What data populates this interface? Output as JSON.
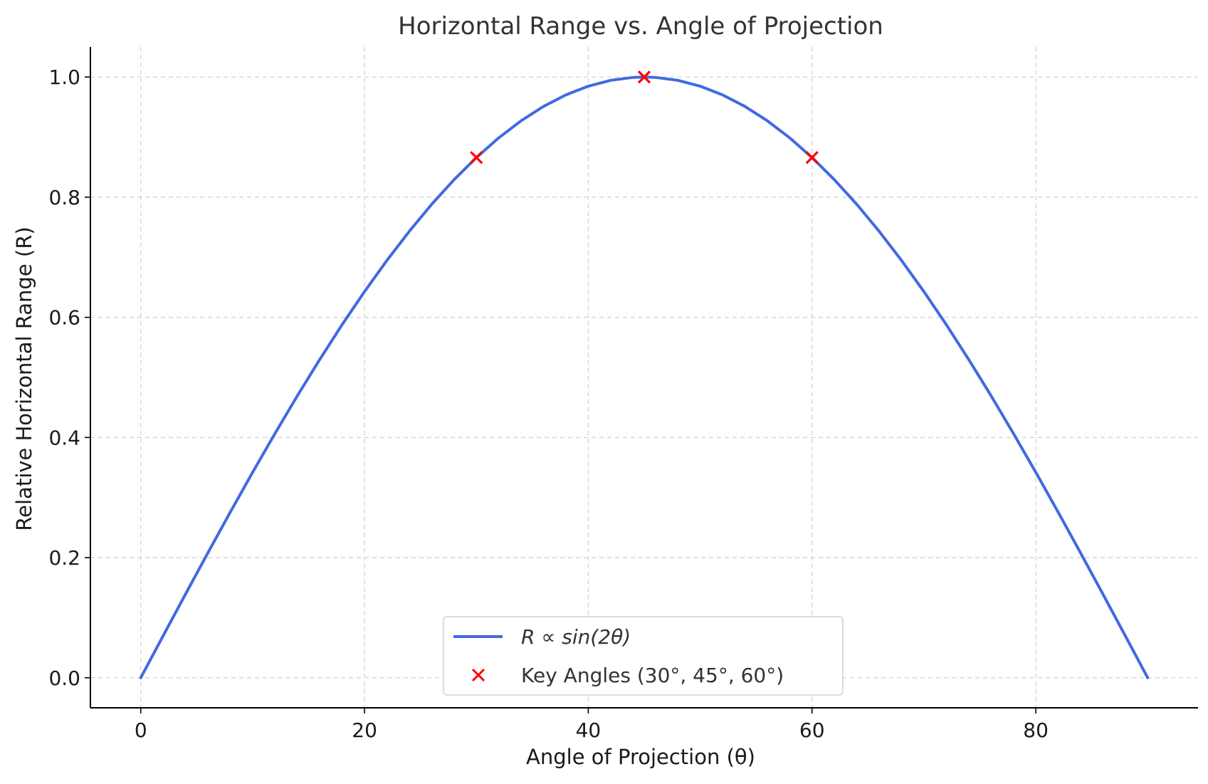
{
  "chart_data": {
    "type": "line",
    "title": "Horizontal Range vs. Angle of Projection",
    "xlabel": "Angle of Projection (θ)",
    "ylabel": "Relative Horizontal Range (R)",
    "xlim": [
      -4.5,
      94.5
    ],
    "ylim": [
      -0.05,
      1.05
    ],
    "xticks": [
      0,
      20,
      40,
      60,
      80
    ],
    "xtick_labels": [
      "0",
      "20",
      "40",
      "60",
      "80"
    ],
    "yticks": [
      0.0,
      0.2,
      0.4,
      0.6,
      0.8,
      1.0
    ],
    "ytick_labels": [
      "0.0",
      "0.2",
      "0.4",
      "0.6",
      "0.8",
      "1.0"
    ],
    "grid": true,
    "legend_position": "bottom-center",
    "series": [
      {
        "name": "R ∝ sin(2θ)",
        "kind": "line",
        "color": "#4169e1",
        "x": [
          0,
          2,
          4,
          6,
          8,
          10,
          12,
          14,
          16,
          18,
          20,
          22,
          24,
          26,
          28,
          30,
          32,
          34,
          36,
          38,
          40,
          42,
          44,
          45,
          46,
          48,
          50,
          52,
          54,
          56,
          58,
          60,
          62,
          64,
          66,
          68,
          70,
          72,
          74,
          76,
          78,
          80,
          82,
          84,
          86,
          88,
          90
        ],
        "y": [
          0.0,
          0.0698,
          0.1392,
          0.2079,
          0.2756,
          0.342,
          0.4067,
          0.4695,
          0.5299,
          0.5878,
          0.6428,
          0.6947,
          0.7431,
          0.788,
          0.829,
          0.866,
          0.8988,
          0.9272,
          0.9511,
          0.9703,
          0.9848,
          0.9945,
          0.9994,
          1.0,
          0.9994,
          0.9945,
          0.9848,
          0.9703,
          0.9511,
          0.9272,
          0.8988,
          0.866,
          0.829,
          0.788,
          0.7431,
          0.6947,
          0.6428,
          0.5878,
          0.5299,
          0.4695,
          0.4067,
          0.342,
          0.2756,
          0.2079,
          0.1392,
          0.0698,
          0.0
        ]
      },
      {
        "name": "Key Angles (30°, 45°, 60°)",
        "kind": "scatter",
        "marker": "x",
        "color": "#ff0000",
        "x": [
          30,
          45,
          60
        ],
        "y": [
          0.866,
          1.0,
          0.866
        ]
      }
    ]
  }
}
